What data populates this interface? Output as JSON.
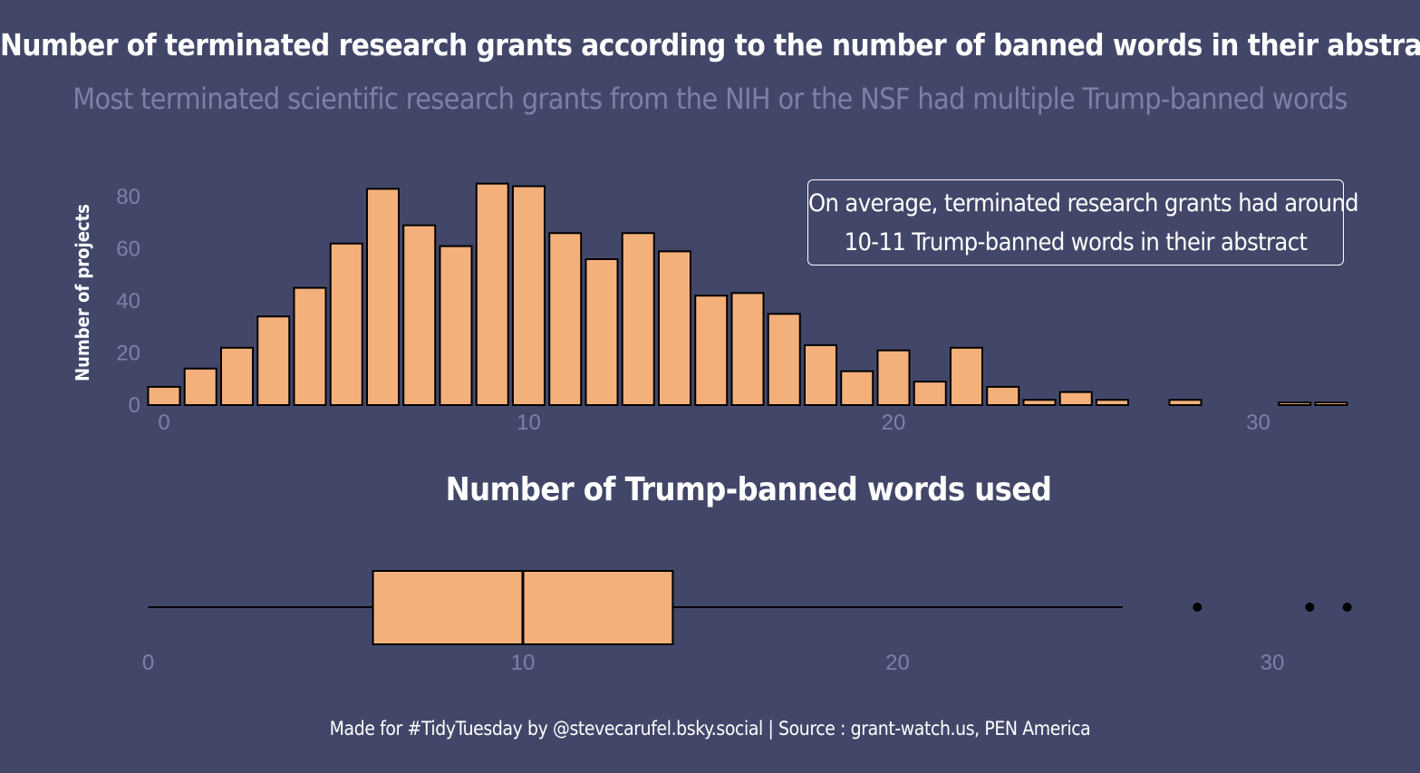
{
  "title": "Number of terminated research grants according to the number of banned words in their abstract",
  "subtitle": "Most terminated scientific research grants from the NIH or the NSF had multiple Trump-banned words",
  "caption": "Made for #TidyTuesday by @stevecarufel.bsky.social | Source : grant-watch.us, PEN America",
  "annotation": {
    "line1": "On average, terminated research grants had around",
    "line2": "10-11 Trump-banned words in their abstract"
  },
  "colors": {
    "background": "#424769",
    "bar_fill": "#f4b07b",
    "bar_stroke": "#000000",
    "tick_text": "#7c80a8",
    "text": "#ffffff"
  },
  "chart_data": [
    {
      "type": "bar",
      "ylabel": "Number of projects",
      "x": [
        0,
        1,
        2,
        3,
        4,
        5,
        6,
        7,
        8,
        9,
        10,
        11,
        12,
        13,
        14,
        15,
        16,
        17,
        18,
        19,
        20,
        21,
        22,
        23,
        24,
        25,
        26,
        27,
        28,
        29,
        30,
        31,
        32
      ],
      "values": [
        7,
        14,
        22,
        34,
        45,
        62,
        83,
        69,
        61,
        85,
        84,
        66,
        56,
        66,
        59,
        42,
        43,
        35,
        23,
        13,
        21,
        9,
        22,
        7,
        2,
        5,
        2,
        0,
        2,
        0,
        0,
        1,
        1
      ],
      "xticks": [
        "0",
        "10",
        "20",
        "30"
      ],
      "yticks": [
        "0",
        "20",
        "40",
        "60",
        "80"
      ],
      "xlim": [
        -0.5,
        32.5
      ],
      "ylim": [
        0,
        90
      ],
      "grid": false
    },
    {
      "type": "boxplot",
      "xlabel": "Number of Trump-banned words used",
      "whisker_low": 0,
      "q1": 6,
      "median": 10,
      "q3": 14,
      "whisker_high": 26,
      "outliers": [
        28,
        31,
        32
      ],
      "xticks": [
        "0",
        "10",
        "20",
        "30"
      ],
      "grid": false
    }
  ]
}
